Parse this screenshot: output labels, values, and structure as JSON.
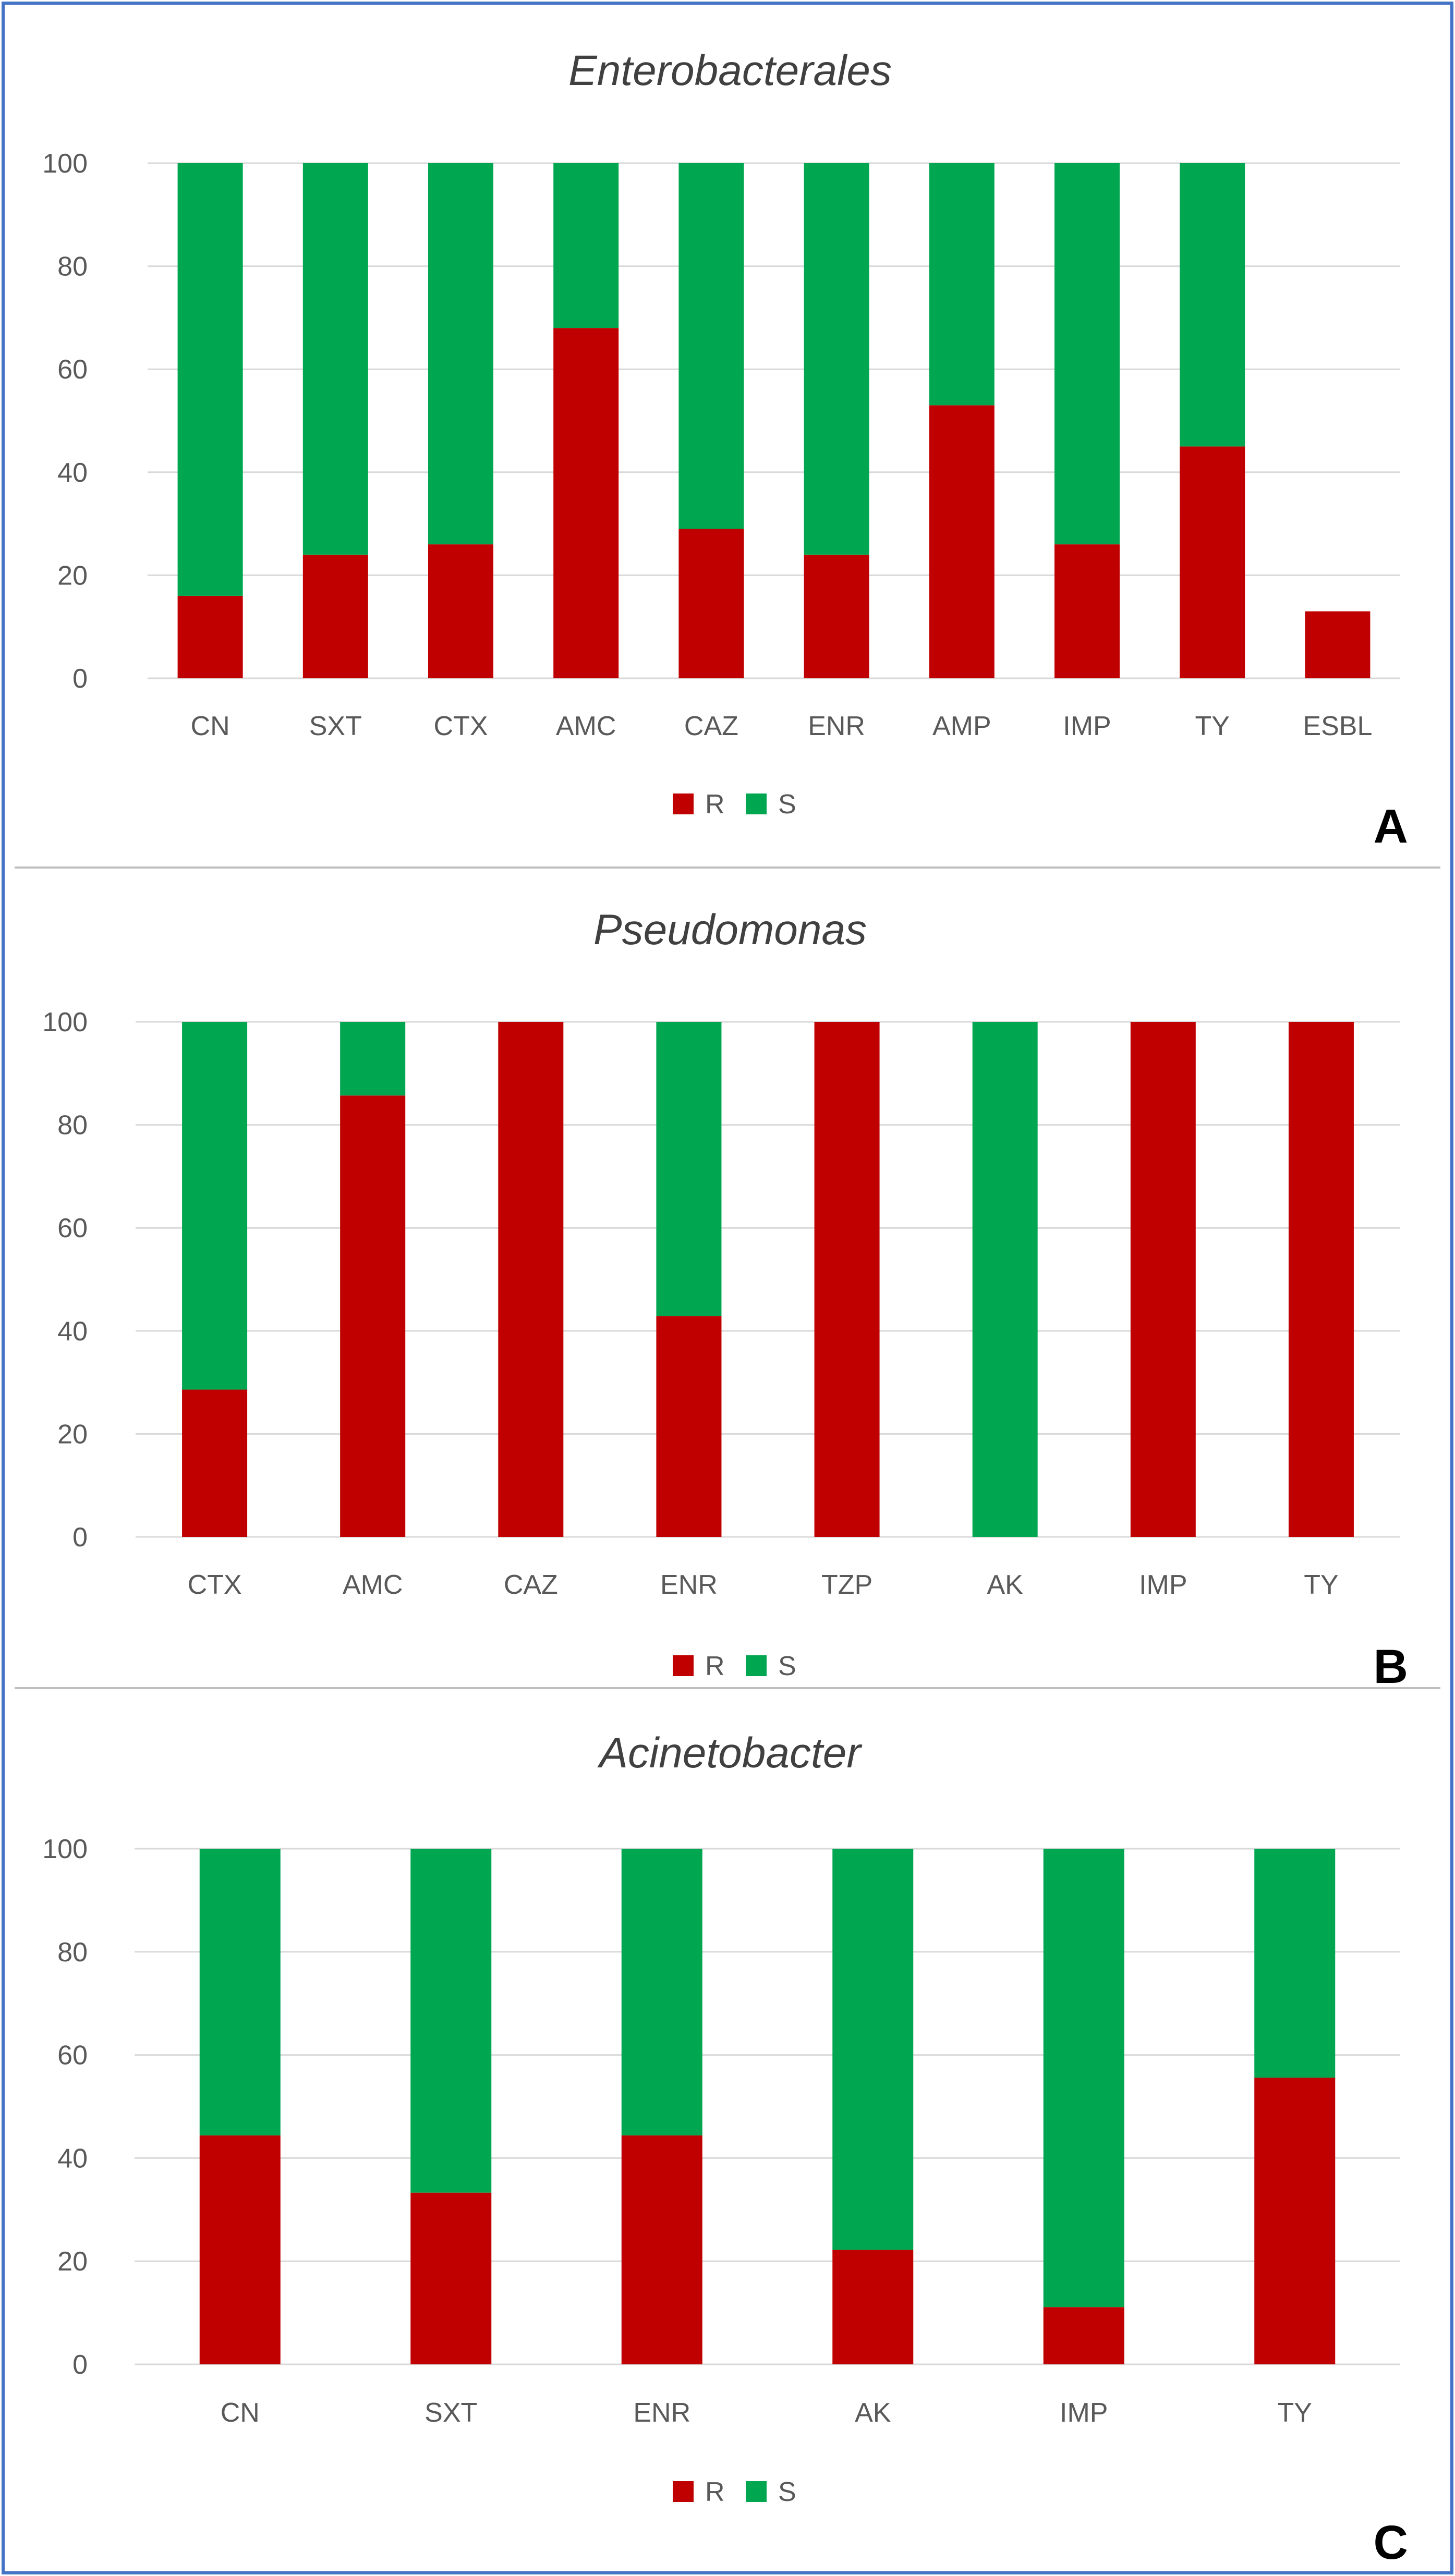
{
  "colors": {
    "R": "#c00000",
    "S": "#00a650",
    "grid": "#d9d9d9",
    "text": "#595959",
    "title": "#404040",
    "border": "#4472c4",
    "panel_border": "#bfbfbf"
  },
  "chart_data": [
    {
      "type": "bar",
      "stacked": true,
      "panel_label": "A",
      "title": "Enterobacterales",
      "xlabel": "",
      "ylabel": "",
      "ylim": [
        0,
        100
      ],
      "yticks": [
        0,
        20,
        40,
        60,
        80,
        100
      ],
      "grid": true,
      "legend": "bottom-center",
      "categories": [
        "CN",
        "SXT",
        "CTX",
        "AMC",
        "CAZ",
        "ENR",
        "AMP",
        "IMP",
        "TY",
        "ESBL"
      ],
      "series": [
        {
          "name": "R",
          "values": [
            16,
            24,
            26,
            68,
            29,
            24,
            53,
            26,
            45,
            13
          ]
        },
        {
          "name": "S",
          "values": [
            84,
            76,
            74,
            32,
            71,
            76,
            47,
            74,
            55,
            0
          ]
        }
      ]
    },
    {
      "type": "bar",
      "stacked": true,
      "panel_label": "B",
      "title": "Pseudomonas",
      "xlabel": "",
      "ylabel": "",
      "ylim": [
        0,
        100
      ],
      "yticks": [
        0,
        20,
        40,
        60,
        80,
        100
      ],
      "grid": true,
      "legend": "bottom-center",
      "categories": [
        "CTX",
        "AMC",
        "CAZ",
        "ENR",
        "TZP",
        "AK",
        "IMP",
        "TY"
      ],
      "series": [
        {
          "name": "R",
          "values": [
            28.6,
            85.7,
            100,
            42.9,
            100,
            0,
            100,
            100
          ]
        },
        {
          "name": "S",
          "values": [
            71.4,
            14.3,
            0,
            57.1,
            0,
            100,
            0,
            0
          ]
        }
      ]
    },
    {
      "type": "bar",
      "stacked": true,
      "panel_label": "C",
      "title": "Acinetobacter",
      "xlabel": "",
      "ylabel": "",
      "ylim": [
        0,
        100
      ],
      "yticks": [
        0,
        20,
        40,
        60,
        80,
        100
      ],
      "grid": true,
      "legend": "bottom-center",
      "categories": [
        "CN",
        "SXT",
        "ENR",
        "AK",
        "IMP",
        "TY"
      ],
      "series": [
        {
          "name": "R",
          "values": [
            44.4,
            33.3,
            44.4,
            22.2,
            11.1,
            55.6
          ]
        },
        {
          "name": "S",
          "values": [
            55.6,
            66.7,
            55.6,
            77.8,
            88.9,
            44.4
          ]
        }
      ]
    }
  ]
}
